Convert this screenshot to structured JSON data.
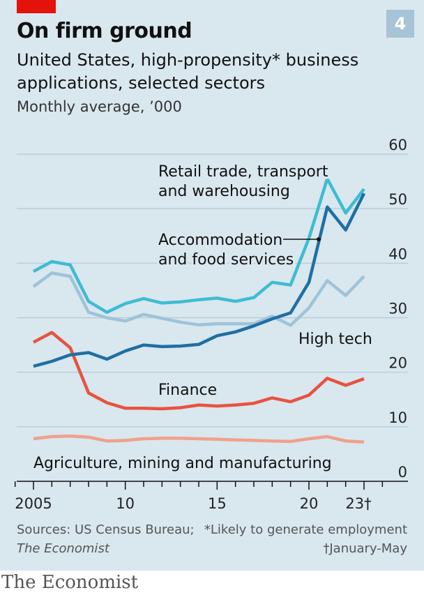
{
  "header": {
    "title": "On firm ground",
    "subtitle": "United States, high-propensity* business applications, selected sectors",
    "units": "Monthly average, ’000",
    "chart_number": "4"
  },
  "footer": {
    "sources_label": "Sources: US Census Bureau;",
    "sources_italic": "The Economist",
    "note1": "*Likely to generate employment",
    "note2": "†January-May",
    "brand": "The Economist"
  },
  "colors": {
    "panel": "#d9e7ef",
    "retail": "#3ebcd2",
    "accommodation": "#1f6fa3",
    "hightech": "#9ec3d9",
    "finance": "#e8533f",
    "agriculture": "#f0a08d",
    "grid": "#b9cedb"
  },
  "chart_data": {
    "type": "line",
    "x": [
      2005,
      2006,
      2007,
      2008,
      2009,
      2010,
      2011,
      2012,
      2013,
      2014,
      2015,
      2016,
      2017,
      2018,
      2019,
      2020,
      2021,
      2022,
      2023
    ],
    "ylim": [
      0,
      60
    ],
    "yticks": [
      0,
      10,
      20,
      30,
      40,
      50,
      60
    ],
    "xticks": [
      {
        "value": 2005,
        "label": "2005"
      },
      {
        "value": 2010,
        "label": "10"
      },
      {
        "value": 2015,
        "label": "15"
      },
      {
        "value": 2020,
        "label": "20"
      },
      {
        "value": 2023,
        "label": "23†"
      }
    ],
    "series": [
      {
        "key": "retail",
        "name": "Retail trade, transport and warehousing",
        "values": [
          38.5,
          40.3,
          39.7,
          33.0,
          31.0,
          32.6,
          33.5,
          32.7,
          32.9,
          33.3,
          33.6,
          33.0,
          33.7,
          36.5,
          36.0,
          44.6,
          55.5,
          49.2,
          53.6
        ]
      },
      {
        "key": "accommodation",
        "name": "Accommodation and food services",
        "values": [
          21.1,
          22.0,
          23.2,
          23.6,
          22.4,
          23.9,
          25.0,
          24.7,
          24.8,
          25.1,
          26.7,
          27.4,
          28.5,
          29.8,
          30.9,
          36.5,
          50.3,
          46.1,
          52.8
        ]
      },
      {
        "key": "hightech",
        "name": "High tech",
        "values": [
          35.7,
          38.2,
          37.6,
          31.0,
          30.0,
          29.4,
          30.6,
          29.9,
          29.2,
          28.7,
          28.9,
          28.9,
          28.9,
          30.3,
          28.6,
          31.8,
          36.8,
          34.1,
          37.6
        ]
      },
      {
        "key": "finance",
        "name": "Finance",
        "values": [
          25.5,
          27.3,
          24.5,
          16.2,
          14.4,
          13.4,
          13.4,
          13.3,
          13.5,
          14.0,
          13.8,
          14.0,
          14.3,
          15.3,
          14.6,
          15.8,
          18.9,
          17.6,
          18.8
        ]
      },
      {
        "key": "agriculture",
        "name": "Agriculture, mining and manufacturing",
        "values": [
          7.8,
          8.2,
          8.3,
          8.1,
          7.4,
          7.5,
          7.8,
          7.9,
          7.9,
          7.8,
          7.7,
          7.6,
          7.5,
          7.4,
          7.3,
          7.8,
          8.2,
          7.4,
          7.2
        ]
      }
    ],
    "annotations": [
      {
        "key": "retail",
        "lines": [
          "Retail trade, transport",
          "and warehousing"
        ]
      },
      {
        "key": "accommodation",
        "lines": [
          "Accommodation",
          "and food services"
        ]
      },
      {
        "key": "hightech",
        "lines": [
          "High tech"
        ]
      },
      {
        "key": "finance",
        "lines": [
          "Finance"
        ]
      },
      {
        "key": "agriculture",
        "lines": [
          "Agriculture, mining and manufacturing"
        ]
      }
    ],
    "grid": true,
    "legend": "direct labels"
  }
}
